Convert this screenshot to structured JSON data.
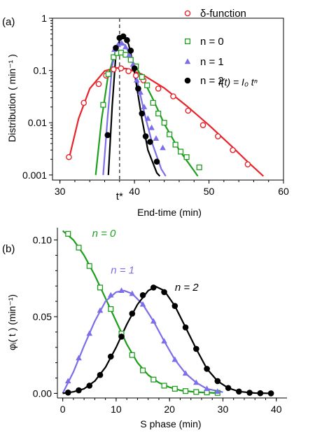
{
  "chart_data": [
    {
      "panel_label": "(a)",
      "type": "scatter",
      "xlabel": "End-time (min)",
      "ylabel": "Distribution ( min⁻¹ )",
      "xlim": [
        29,
        60
      ],
      "ylim": [
        0.0008,
        1
      ],
      "yscale": "log",
      "xticks": [
        30,
        40,
        50,
        60
      ],
      "yticks": [
        {
          "value": 0.001,
          "label": "0.001"
        },
        {
          "value": 0.01,
          "label": "0.01"
        },
        {
          "value": 0.1,
          "label": "0.1"
        },
        {
          "value": 1,
          "label": "1"
        }
      ],
      "vline": {
        "x": 38,
        "label": "t*"
      },
      "formula": "I(t) = I₀ tⁿ",
      "legend_position": "top-right",
      "series": [
        {
          "name": "δ-function",
          "marker": "circle-open",
          "color": "#e8232a",
          "points": [
            [
              31.2,
              0.0022
            ],
            [
              33.2,
              0.024
            ],
            [
              35.2,
              0.055
            ],
            [
              36.2,
              0.08
            ],
            [
              37.2,
              0.105
            ],
            [
              38.2,
              0.11
            ],
            [
              39.2,
              0.097
            ],
            [
              40.2,
              0.08
            ],
            [
              41.2,
              0.065
            ],
            [
              43.2,
              0.045
            ],
            [
              45.2,
              0.032
            ],
            [
              47.2,
              0.017
            ],
            [
              49.2,
              0.009
            ],
            [
              51.2,
              0.0055
            ],
            [
              53.2,
              0.003
            ],
            [
              55.2,
              0.0016
            ]
          ],
          "curve": [
            [
              31.2,
              0.002
            ],
            [
              32.5,
              0.012
            ],
            [
              34,
              0.045
            ],
            [
              36,
              0.098
            ],
            [
              37.5,
              0.112
            ],
            [
              39,
              0.108
            ],
            [
              41,
              0.085
            ],
            [
              44,
              0.046
            ],
            [
              47,
              0.021
            ],
            [
              50,
              0.009
            ],
            [
              53,
              0.0036
            ],
            [
              55,
              0.0019
            ],
            [
              57.3,
              0.00095
            ]
          ]
        },
        {
          "name": "n = 0",
          "marker": "square-open",
          "color": "#1e9e1e",
          "points": [
            [
              35.8,
              0.022
            ],
            [
              36.5,
              0.085
            ],
            [
              37.2,
              0.18
            ],
            [
              37.7,
              0.215
            ],
            [
              38.2,
              0.22
            ],
            [
              38.8,
              0.2
            ],
            [
              39.5,
              0.16
            ],
            [
              40.2,
              0.12
            ],
            [
              41,
              0.075
            ],
            [
              41.7,
              0.052
            ],
            [
              42.5,
              0.024
            ],
            [
              43.2,
              0.015
            ],
            [
              44,
              0.01
            ],
            [
              44.7,
              0.006
            ],
            [
              45.5,
              0.0038
            ],
            [
              46.2,
              0.0028
            ],
            [
              47,
              0.0022
            ],
            [
              48.7,
              0.0014
            ]
          ],
          "curve": [
            [
              34.8,
              0.001
            ],
            [
              35.6,
              0.012
            ],
            [
              36.4,
              0.07
            ],
            [
              37.2,
              0.18
            ],
            [
              38,
              0.23
            ],
            [
              38.8,
              0.205
            ],
            [
              39.8,
              0.145
            ],
            [
              41,
              0.075
            ],
            [
              42.5,
              0.028
            ],
            [
              44,
              0.0095
            ],
            [
              46,
              0.003
            ],
            [
              48,
              0.0012
            ],
            [
              48.5,
              0.00095
            ]
          ]
        },
        {
          "name": "n = 1",
          "marker": "triangle-filled",
          "color": "#7b6ee8",
          "points": [
            [
              37.3,
              0.25
            ],
            [
              37.8,
              0.31
            ],
            [
              38.3,
              0.33
            ],
            [
              38.8,
              0.28
            ],
            [
              39.3,
              0.2
            ],
            [
              39.8,
              0.13
            ],
            [
              40.3,
              0.065
            ],
            [
              40.8,
              0.038
            ],
            [
              41.3,
              0.02
            ],
            [
              41.8,
              0.012
            ],
            [
              42.3,
              0.008
            ],
            [
              42.9,
              0.005
            ],
            [
              43.8,
              0.0033
            ]
          ],
          "curve": [
            [
              35.8,
              0.001
            ],
            [
              36.4,
              0.013
            ],
            [
              37,
              0.12
            ],
            [
              37.6,
              0.3
            ],
            [
              38.2,
              0.35
            ],
            [
              38.8,
              0.3
            ],
            [
              39.6,
              0.17
            ],
            [
              40.4,
              0.06
            ],
            [
              41.4,
              0.014
            ],
            [
              42.4,
              0.004
            ],
            [
              43.6,
              0.0013
            ],
            [
              44.2,
              0.00095
            ]
          ]
        },
        {
          "name": "n = 2",
          "marker": "circle-filled",
          "color": "#000000",
          "points": [
            [
              36.4,
              0.0058
            ],
            [
              37.5,
              0.27
            ],
            [
              38,
              0.42
            ],
            [
              38.5,
              0.45
            ],
            [
              39,
              0.38
            ],
            [
              39.5,
              0.24
            ],
            [
              40,
              0.11
            ],
            [
              40.5,
              0.045
            ],
            [
              41,
              0.015
            ],
            [
              41.5,
              0.0055
            ],
            [
              42.1,
              0.0043
            ],
            [
              43,
              0.0018
            ]
          ],
          "curve": [
            [
              36.5,
              0.001
            ],
            [
              37,
              0.02
            ],
            [
              37.5,
              0.2
            ],
            [
              38.1,
              0.43
            ],
            [
              38.6,
              0.44
            ],
            [
              39.2,
              0.32
            ],
            [
              39.8,
              0.14
            ],
            [
              40.4,
              0.04
            ],
            [
              41,
              0.012
            ],
            [
              41.8,
              0.003
            ],
            [
              43,
              0.0011
            ],
            [
              43.4,
              0.00095
            ]
          ]
        }
      ]
    },
    {
      "panel_label": "(b)",
      "type": "scatter",
      "xlabel": "S phase (min)",
      "ylabel": "φᵢ( t )  (min⁻¹)",
      "xlim": [
        -1,
        42
      ],
      "ylim": [
        -0.003,
        0.108
      ],
      "xticks": [
        0,
        10,
        20,
        30,
        40
      ],
      "yticks": [
        {
          "value": 0,
          "label": "0.00"
        },
        {
          "value": 0.05,
          "label": "0.05"
        },
        {
          "value": 0.1,
          "label": "0.10"
        }
      ],
      "series": [
        {
          "name": "n = 0",
          "marker": "square-open",
          "color": "#1e9e1e",
          "points": [
            [
              1,
              0.104
            ],
            [
              3,
              0.095
            ],
            [
              5,
              0.083
            ],
            [
              7,
              0.069
            ],
            [
              9,
              0.055
            ],
            [
              11,
              0.039
            ],
            [
              13,
              0.025
            ],
            [
              15,
              0.015
            ],
            [
              17,
              0.009
            ],
            [
              19,
              0.005
            ],
            [
              21,
              0.003
            ],
            [
              23,
              0.0015
            ],
            [
              25,
              0.0009
            ],
            [
              27,
              0.0006
            ],
            [
              29,
              0.0003
            ]
          ],
          "curve": [
            [
              0,
              0.106
            ],
            [
              2,
              0.1
            ],
            [
              4,
              0.09
            ],
            [
              6,
              0.077
            ],
            [
              8,
              0.062
            ],
            [
              10,
              0.047
            ],
            [
              12,
              0.032
            ],
            [
              14,
              0.02
            ],
            [
              16,
              0.012
            ],
            [
              18,
              0.007
            ],
            [
              20,
              0.004
            ],
            [
              22,
              0.002
            ],
            [
              25,
              0.0008
            ],
            [
              29,
              0.0002
            ]
          ]
        },
        {
          "name": "n = 1",
          "marker": "triangle-filled",
          "color": "#7b6ee8",
          "points": [
            [
              1,
              0.008
            ],
            [
              3,
              0.023
            ],
            [
              5,
              0.039
            ],
            [
              7,
              0.054
            ],
            [
              9,
              0.064
            ],
            [
              11,
              0.067
            ],
            [
              13,
              0.065
            ],
            [
              15,
              0.058
            ],
            [
              17,
              0.047
            ],
            [
              19,
              0.034
            ],
            [
              21,
              0.022
            ],
            [
              23,
              0.013
            ],
            [
              25,
              0.007
            ],
            [
              27,
              0.003
            ],
            [
              29,
              0.0012
            ]
          ],
          "curve": [
            [
              0,
              0.0
            ],
            [
              2,
              0.014
            ],
            [
              4,
              0.031
            ],
            [
              6,
              0.047
            ],
            [
              8,
              0.06
            ],
            [
              10,
              0.066
            ],
            [
              11.5,
              0.067
            ],
            [
              13,
              0.065
            ],
            [
              15,
              0.058
            ],
            [
              17,
              0.047
            ],
            [
              19,
              0.034
            ],
            [
              21,
              0.022
            ],
            [
              23,
              0.013
            ],
            [
              25,
              0.007
            ],
            [
              27,
              0.003
            ],
            [
              30,
              0.0008
            ]
          ]
        },
        {
          "name": "n = 2",
          "marker": "circle-filled",
          "color": "#000000",
          "points": [
            [
              1,
              0.0005
            ],
            [
              3,
              0.002
            ],
            [
              5,
              0.005
            ],
            [
              7,
              0.012
            ],
            [
              9,
              0.024
            ],
            [
              11,
              0.037
            ],
            [
              13,
              0.052
            ],
            [
              15,
              0.064
            ],
            [
              17,
              0.069
            ],
            [
              19,
              0.066
            ],
            [
              21,
              0.057
            ],
            [
              23,
              0.043
            ],
            [
              25,
              0.029
            ],
            [
              27,
              0.016
            ],
            [
              29,
              0.008
            ],
            [
              31,
              0.0035
            ],
            [
              33,
              0.0012
            ],
            [
              35,
              0.0004
            ],
            [
              37,
              0.0001
            ],
            [
              39,
              0.0
            ]
          ],
          "curve": [
            [
              0,
              0.0
            ],
            [
              2,
              0.001
            ],
            [
              4,
              0.003
            ],
            [
              6,
              0.008
            ],
            [
              8,
              0.017
            ],
            [
              10,
              0.03
            ],
            [
              12,
              0.045
            ],
            [
              14,
              0.058
            ],
            [
              16,
              0.067
            ],
            [
              17.5,
              0.0695
            ],
            [
              19,
              0.067
            ],
            [
              21,
              0.057
            ],
            [
              23,
              0.043
            ],
            [
              25,
              0.029
            ],
            [
              27,
              0.016
            ],
            [
              29,
              0.008
            ],
            [
              31,
              0.0035
            ],
            [
              33,
              0.0012
            ],
            [
              36,
              0.0002
            ],
            [
              39,
              0.0
            ]
          ]
        }
      ],
      "annotations": [
        {
          "text": "n = 0",
          "color": "#1e9e1e",
          "at": [
            5.5,
            0.102
          ]
        },
        {
          "text": "n = 1",
          "color": "#7b6ee8",
          "at": [
            9,
            0.078
          ]
        },
        {
          "text": "n = 2",
          "color": "#000000",
          "at": [
            21,
            0.067
          ]
        }
      ]
    }
  ]
}
